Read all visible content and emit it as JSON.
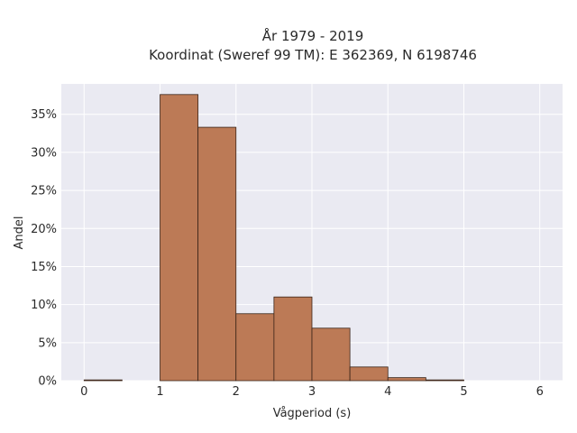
{
  "chart_data": {
    "type": "bar",
    "title_lines": [
      "År 1979 - 2019",
      "Koordinat (Sweref 99 TM): E 362369, N 6198746"
    ],
    "xlabel": "Vågperiod (s)",
    "ylabel": "Andel",
    "bin_width": 0.5,
    "bins": [
      {
        "start": 0.0,
        "end": 0.5,
        "value": 0.001
      },
      {
        "start": 0.5,
        "end": 1.0,
        "value": 0.0
      },
      {
        "start": 1.0,
        "end": 1.5,
        "value": 0.376
      },
      {
        "start": 1.5,
        "end": 2.0,
        "value": 0.333
      },
      {
        "start": 2.0,
        "end": 2.5,
        "value": 0.088
      },
      {
        "start": 2.5,
        "end": 3.0,
        "value": 0.11
      },
      {
        "start": 3.0,
        "end": 3.5,
        "value": 0.069
      },
      {
        "start": 3.5,
        "end": 4.0,
        "value": 0.018
      },
      {
        "start": 4.0,
        "end": 4.5,
        "value": 0.004
      },
      {
        "start": 4.5,
        "end": 5.0,
        "value": 0.001
      }
    ],
    "xlim": [
      -0.3,
      6.3
    ],
    "ylim": [
      0,
      0.39
    ],
    "xticks": [
      0,
      1,
      2,
      3,
      4,
      5,
      6
    ],
    "xtick_labels": [
      "0",
      "1",
      "2",
      "3",
      "4",
      "5",
      "6"
    ],
    "yticks": [
      0,
      0.05,
      0.1,
      0.15,
      0.2,
      0.25,
      0.3,
      0.35
    ],
    "ytick_labels": [
      "0%",
      "5%",
      "10%",
      "15%",
      "20%",
      "25%",
      "30%",
      "35%"
    ],
    "grid": true,
    "bar_color": "#bc7a56",
    "bar_edge_color": "#3a2418",
    "plot_background": "#eaeaf2",
    "grid_color": "#ffffff"
  }
}
